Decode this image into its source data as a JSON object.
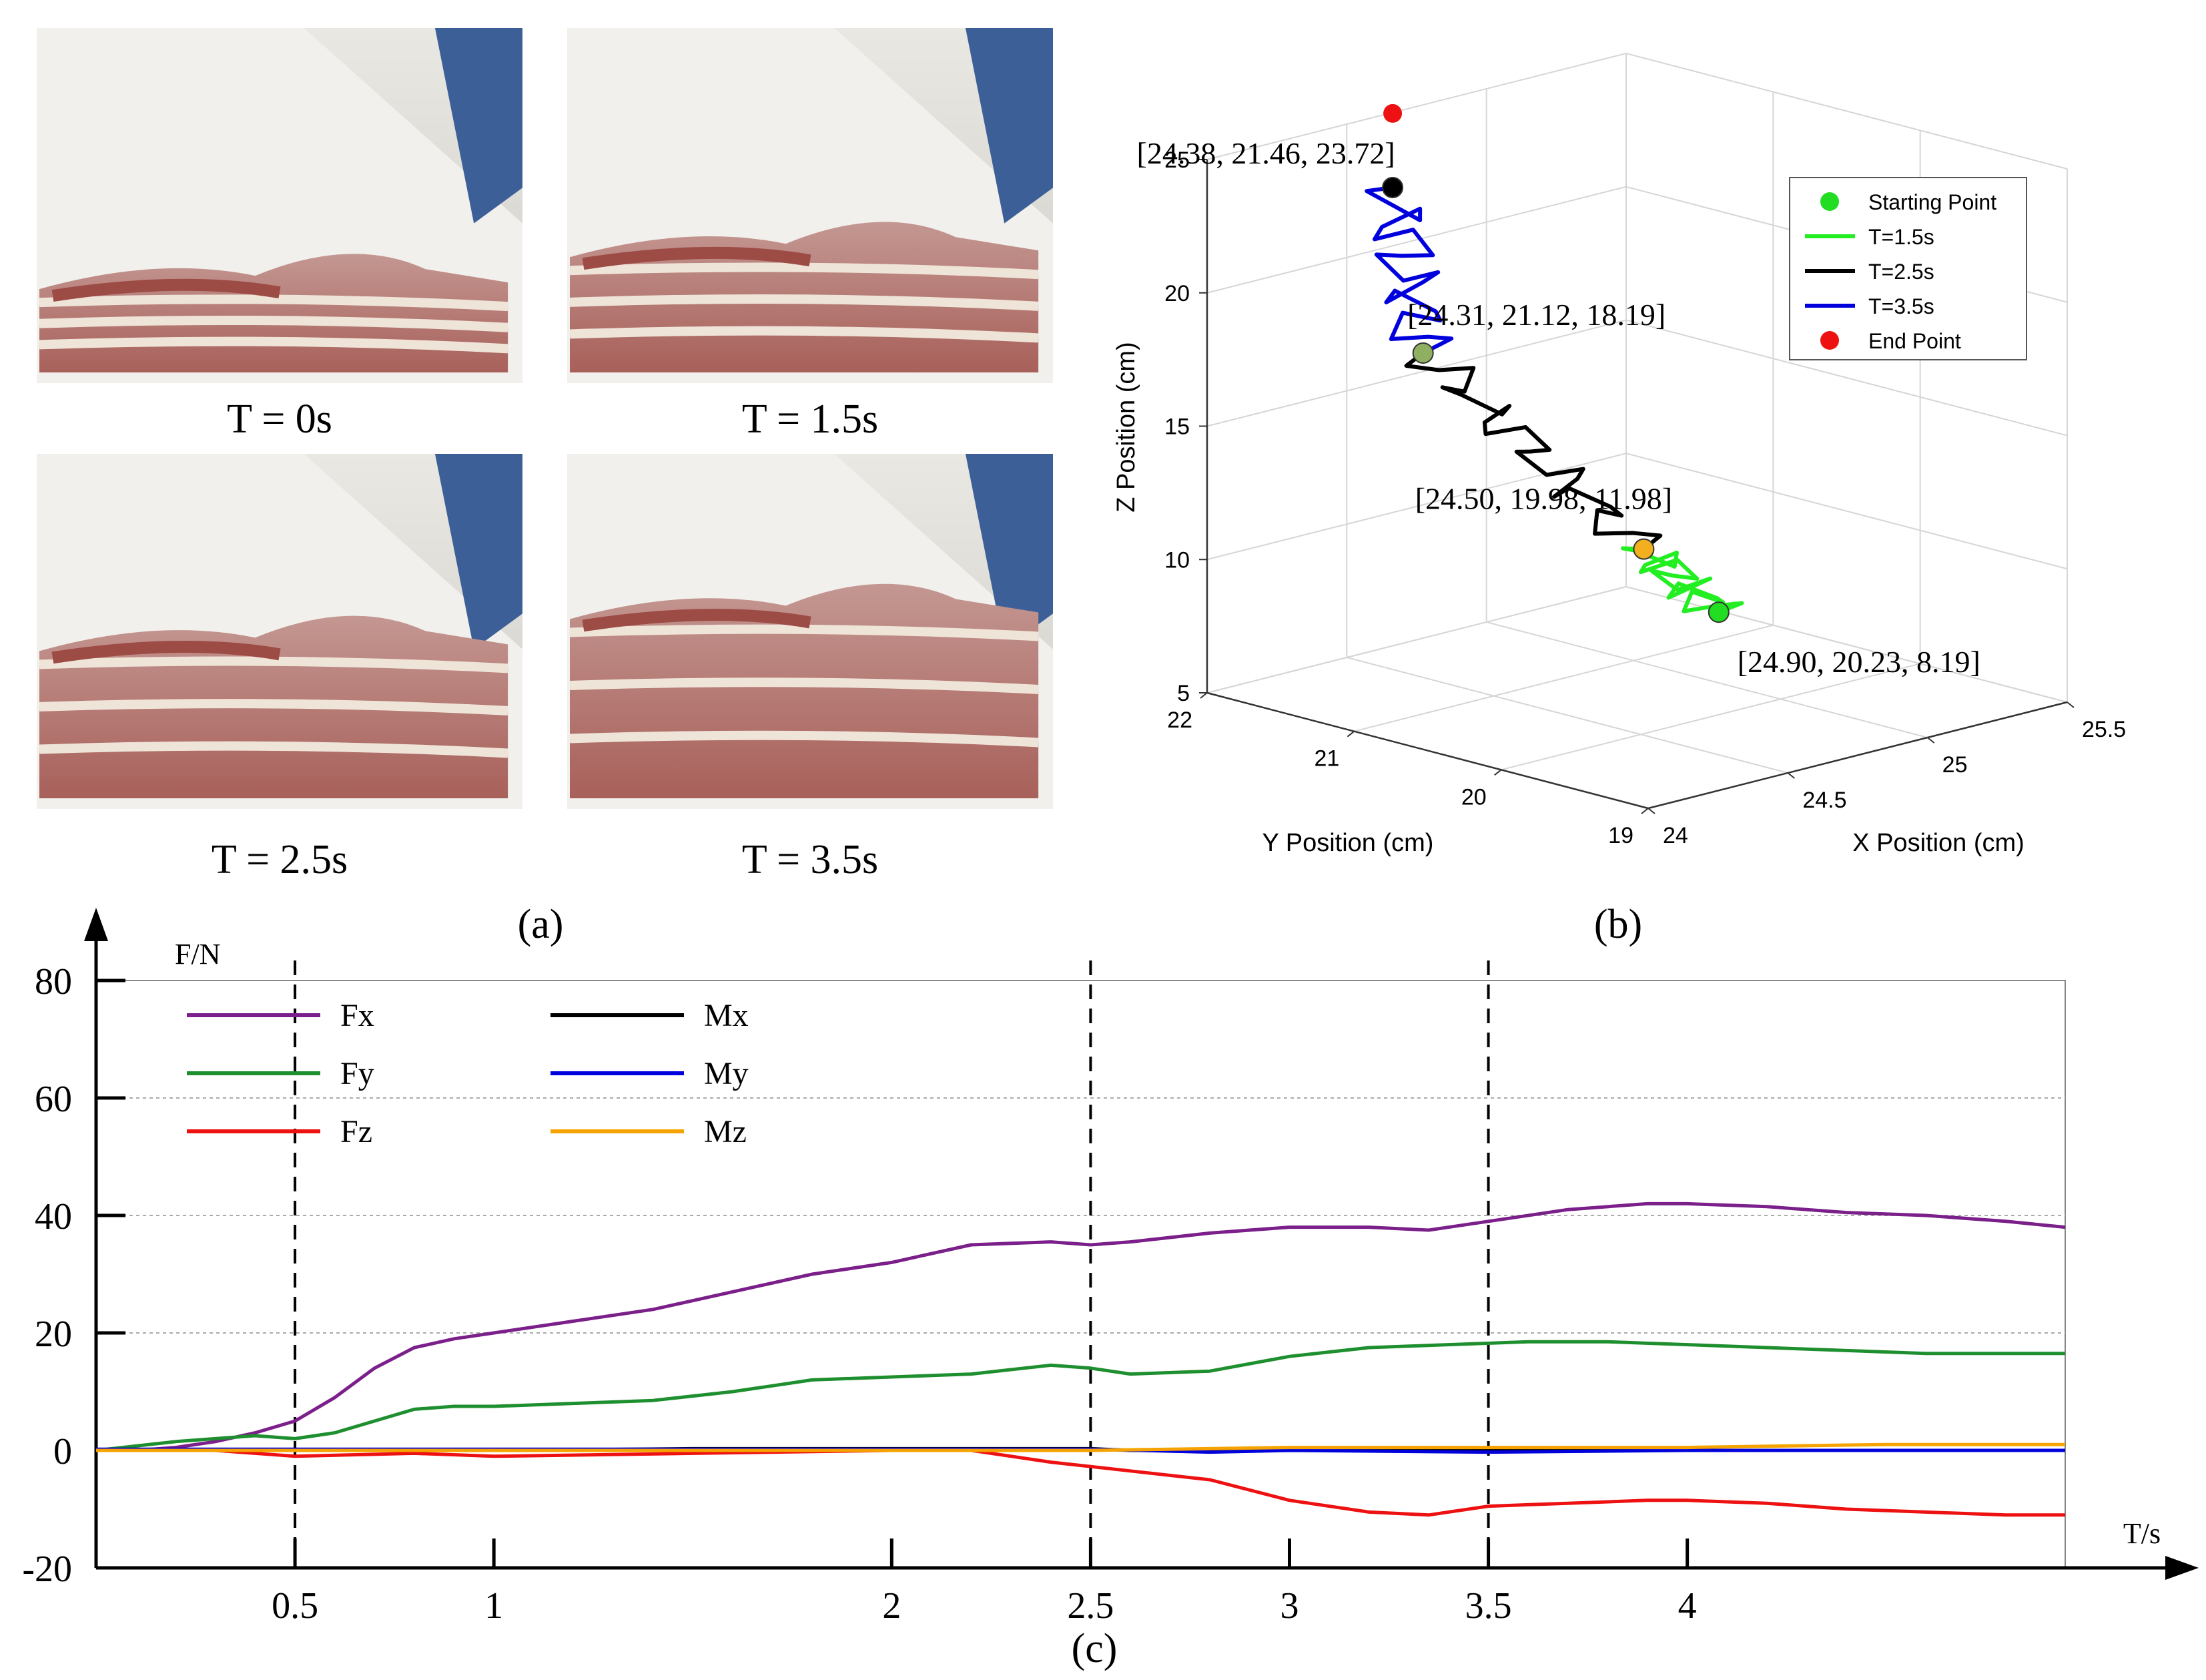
{
  "photos": {
    "panel_label": "(a)",
    "frames": [
      {
        "caption": "T = 0s",
        "stage": 0
      },
      {
        "caption": "T = 1.5s",
        "stage": 1
      },
      {
        "caption": "T = 2.5s",
        "stage": 2
      },
      {
        "caption": "T = 3.5s",
        "stage": 3
      }
    ],
    "colors": {
      "floor": "#dedcd6",
      "belt": "#f1f0ec",
      "meat": "#b86f68",
      "fat": "#efe4d8",
      "lean": "#9d4b45",
      "box": "#3d5f97"
    }
  },
  "chart_data": [
    {
      "type": "line",
      "dims": "3d",
      "panel_label": "(b)",
      "title": "",
      "xlabel": "X Position (cm)",
      "ylabel": "Y Position (cm)",
      "zlabel": "Z Position (cm)",
      "xlim": [
        24,
        25.5
      ],
      "ylim": [
        19,
        22
      ],
      "zlim": [
        5,
        25
      ],
      "x_ticks": [
        "24",
        "24.5",
        "25",
        "25.5"
      ],
      "y_ticks": [
        "19",
        "20",
        "21",
        "22"
      ],
      "z_ticks": [
        "5",
        "10",
        "15",
        "20",
        "25"
      ],
      "grid": true,
      "legend_position": "top-right",
      "legend": [
        {
          "label": "Starting Point",
          "kind": "marker",
          "color": "#22dd22"
        },
        {
          "label": "T=1.5s",
          "kind": "line",
          "color": "#22ee22"
        },
        {
          "label": "T=2.5s",
          "kind": "line",
          "color": "#000000"
        },
        {
          "label": "T=3.5s",
          "kind": "line",
          "color": "#0000dd"
        },
        {
          "label": "End Point",
          "kind": "marker",
          "color": "#ee1111"
        }
      ],
      "points": [
        {
          "label": "[24.90, 20.23, 8.19]",
          "xyz": [
            24.9,
            20.23,
            8.19
          ],
          "color": "#22dd22",
          "role": "start"
        },
        {
          "label": "[24.50, 19.98, 11.98]",
          "xyz": [
            24.5,
            19.98,
            11.98
          ],
          "color": "#f2b01e",
          "role": "t1.5"
        },
        {
          "label": "[24.31, 21.12, 18.19]",
          "xyz": [
            24.31,
            21.12,
            18.19
          ],
          "color": "#8fb060",
          "role": "t2.5"
        },
        {
          "label": "[24.38, 21.46, 23.72]",
          "xyz": [
            24.38,
            21.46,
            23.72
          ],
          "color": "#000000",
          "role": "t3.5"
        },
        {
          "label": "",
          "xyz": [
            24.38,
            21.46,
            26.5
          ],
          "color": "#ee1111",
          "role": "end"
        }
      ]
    },
    {
      "type": "line",
      "panel_label": "(c)",
      "title": "",
      "xlabel": "T/s",
      "ylabel": "F/N",
      "xlim": [
        0,
        4.95
      ],
      "ylim": [
        -20,
        80
      ],
      "x_ticks": [
        0.5,
        1,
        2,
        2.5,
        3,
        3.5,
        4
      ],
      "y_ticks": [
        -20,
        0,
        20,
        40,
        60,
        80
      ],
      "gridlines_y": [
        20,
        40,
        60
      ],
      "vlines": [
        0.5,
        2.5,
        3.5
      ],
      "legend_position": "top-left",
      "series": [
        {
          "name": "Fx",
          "color": "#7b1f8a",
          "x": [
            0,
            0.1,
            0.2,
            0.3,
            0.4,
            0.5,
            0.6,
            0.7,
            0.8,
            0.9,
            1.0,
            1.2,
            1.4,
            1.6,
            1.8,
            2.0,
            2.2,
            2.4,
            2.5,
            2.6,
            2.8,
            3.0,
            3.2,
            3.35,
            3.5,
            3.7,
            3.9,
            4.0,
            4.2,
            4.4,
            4.6,
            4.8,
            4.95
          ],
          "values": [
            0,
            0,
            0.5,
            1.5,
            3,
            5,
            9,
            14,
            17.5,
            19,
            20,
            22,
            24,
            27,
            30,
            32,
            35,
            35.5,
            35,
            35.5,
            37,
            38,
            38,
            37.5,
            39,
            41,
            42,
            42,
            41.5,
            40.5,
            40,
            39,
            38
          ]
        },
        {
          "name": "Fy",
          "color": "#1e8f2e",
          "x": [
            0,
            0.2,
            0.4,
            0.5,
            0.6,
            0.7,
            0.8,
            0.9,
            1.0,
            1.2,
            1.4,
            1.6,
            1.8,
            2.0,
            2.2,
            2.4,
            2.5,
            2.6,
            2.8,
            3.0,
            3.2,
            3.4,
            3.6,
            3.8,
            4.0,
            4.2,
            4.4,
            4.6,
            4.8,
            4.95
          ],
          "values": [
            0,
            1.5,
            2.5,
            2,
            3,
            5,
            7,
            7.5,
            7.5,
            8,
            8.5,
            10,
            12,
            12.5,
            13,
            14.5,
            14,
            13,
            13.5,
            16,
            17.5,
            18,
            18.5,
            18.5,
            18,
            17.5,
            17,
            16.5,
            16.5,
            16.5
          ]
        },
        {
          "name": "Fz",
          "color": "#ee1111",
          "x": [
            0,
            0.3,
            0.5,
            0.8,
            1.0,
            1.5,
            2.0,
            2.2,
            2.4,
            2.6,
            2.8,
            3.0,
            3.2,
            3.35,
            3.5,
            3.7,
            3.9,
            4.0,
            4.2,
            4.4,
            4.6,
            4.8,
            4.95
          ],
          "values": [
            0,
            0,
            -1,
            -0.5,
            -1,
            -0.5,
            0,
            0,
            -2,
            -3.5,
            -5,
            -8.5,
            -10.5,
            -11,
            -9.5,
            -9,
            -8.5,
            -8.5,
            -9,
            -10,
            -10.5,
            -11,
            -11
          ]
        },
        {
          "name": "Mx",
          "color": "#000000",
          "x": [
            0,
            0.5,
            1.0,
            1.5,
            2.0,
            2.5,
            2.6,
            3.0,
            3.5,
            4.0,
            4.5,
            4.95
          ],
          "values": [
            0,
            0,
            0,
            0.3,
            0.3,
            0.3,
            0,
            0,
            0,
            0,
            0,
            0
          ]
        },
        {
          "name": "My",
          "color": "#0000dd",
          "x": [
            0,
            0.5,
            1.0,
            1.5,
            2.0,
            2.5,
            2.8,
            3.0,
            3.5,
            4.0,
            4.5,
            4.95
          ],
          "values": [
            0.2,
            0.2,
            0.2,
            0.2,
            0.2,
            0.2,
            -0.3,
            0,
            -0.3,
            0,
            0,
            0
          ]
        },
        {
          "name": "Mz",
          "color": "#f5a300",
          "x": [
            0,
            0.5,
            1.0,
            1.5,
            2.0,
            2.5,
            3.0,
            3.5,
            4.0,
            4.5,
            4.95
          ],
          "values": [
            0,
            0,
            0,
            0,
            0,
            0,
            0.5,
            0.5,
            0.5,
            1,
            1
          ]
        }
      ]
    }
  ]
}
